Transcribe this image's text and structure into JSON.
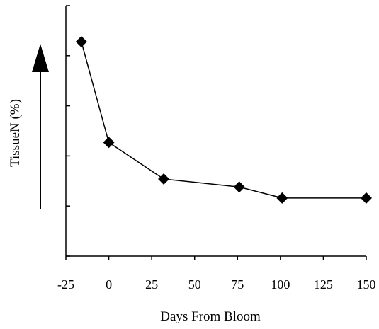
{
  "chart_data": {
    "type": "line",
    "title": "",
    "xlabel": "Days From Bloom",
    "ylabel": "TissueN (%)",
    "x_ticks": [
      "-25",
      "0",
      "25",
      "50",
      "75",
      "100",
      "125",
      "150"
    ],
    "xlim": [
      -25,
      150
    ],
    "y_tick_count": 5,
    "ylim": [
      0,
      5
    ],
    "y_scale_note": "unlabeled",
    "arrow": "up",
    "grid": false,
    "legend": "none",
    "series": [
      {
        "x": [
          -16,
          0,
          32,
          76,
          101,
          150
        ],
        "y": [
          4.28,
          2.27,
          1.54,
          1.38,
          1.16,
          1.16
        ],
        "marker": "diamond",
        "color": "#000000"
      }
    ]
  }
}
